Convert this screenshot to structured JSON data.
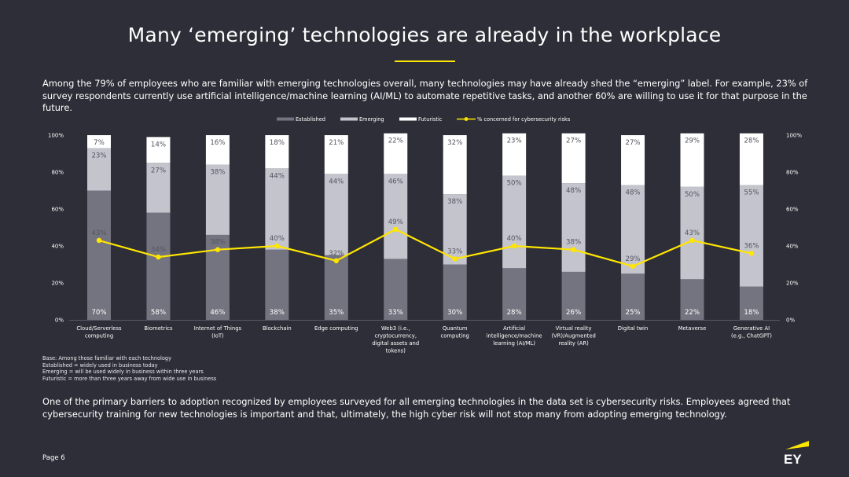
{
  "page": {
    "title": "Many ‘emerging’ technologies are already in the workplace",
    "intro": "Among the 79% of employees who are familiar with emerging technologies overall, many technologies may have already shed the “emerging” label. For example, 23% of survey respondents currently use artificial intelligence/machine learning (AI/ML) to automate repetitive tasks, and another 60% are willing to use it for that purpose in the future.",
    "notes": [
      "Base: Among those familiar with each technology",
      "Established = widely used in business today",
      "Emerging = will be used widely in business within three years",
      "Futuristic = more than three years away from wide use in business"
    ],
    "closing": "One of the primary barriers to adoption recognized by employees surveyed for all emerging technologies in the data set is cybersecurity risks. Employees agreed that cybersecurity training for new technologies is important and that, ultimately, the high cyber risk will not stop many from adopting emerging technology.",
    "page_number": "Page 6",
    "logo_text": "EY"
  },
  "colors": {
    "background": "#2e2e38",
    "established": "#747480",
    "emerging": "#c4c4cd",
    "futuristic": "#ffffff",
    "line": "#ffe600",
    "accent": "#ffe600"
  },
  "chart_data": {
    "type": "bar",
    "stacked": true,
    "categories": [
      [
        "Cloud/Serverless",
        "computing"
      ],
      [
        "Biometrics"
      ],
      [
        "Internet of Things",
        "(IoT)"
      ],
      [
        "Blockchain"
      ],
      [
        "Edge computing"
      ],
      [
        "Web3 (i.e.,",
        "cryptocurrency,",
        "digital assets and",
        "tokens)"
      ],
      [
        "Quantum",
        "computing"
      ],
      [
        "Artificial",
        "intelligence/machine",
        "learning (AI/ML)"
      ],
      [
        "Virtual reality",
        "(VR)/Augmented",
        "reality (AR)"
      ],
      [
        "Digital twin"
      ],
      [
        "Metaverse"
      ],
      [
        "Generative AI",
        "(e.g., ChatGPT)"
      ]
    ],
    "series": [
      {
        "name": "Established",
        "values": [
          70,
          58,
          46,
          38,
          35,
          33,
          30,
          28,
          26,
          25,
          22,
          18
        ]
      },
      {
        "name": "Emerging",
        "values": [
          23,
          27,
          38,
          44,
          44,
          46,
          38,
          50,
          48,
          48,
          50,
          55
        ]
      },
      {
        "name": "Futuristic",
        "values": [
          7,
          14,
          16,
          18,
          21,
          22,
          32,
          23,
          27,
          27,
          29,
          28
        ]
      }
    ],
    "line_series": {
      "name": "% concerned for cybersecurity risks",
      "values": [
        43,
        34,
        38,
        40,
        32,
        49,
        33,
        40,
        38,
        29,
        43,
        36
      ]
    },
    "y_ticks": [
      "0%",
      "20%",
      "40%",
      "60%",
      "80%",
      "100%"
    ],
    "ylim": [
      0,
      100
    ],
    "legend_position": "top-center",
    "grid": false
  }
}
